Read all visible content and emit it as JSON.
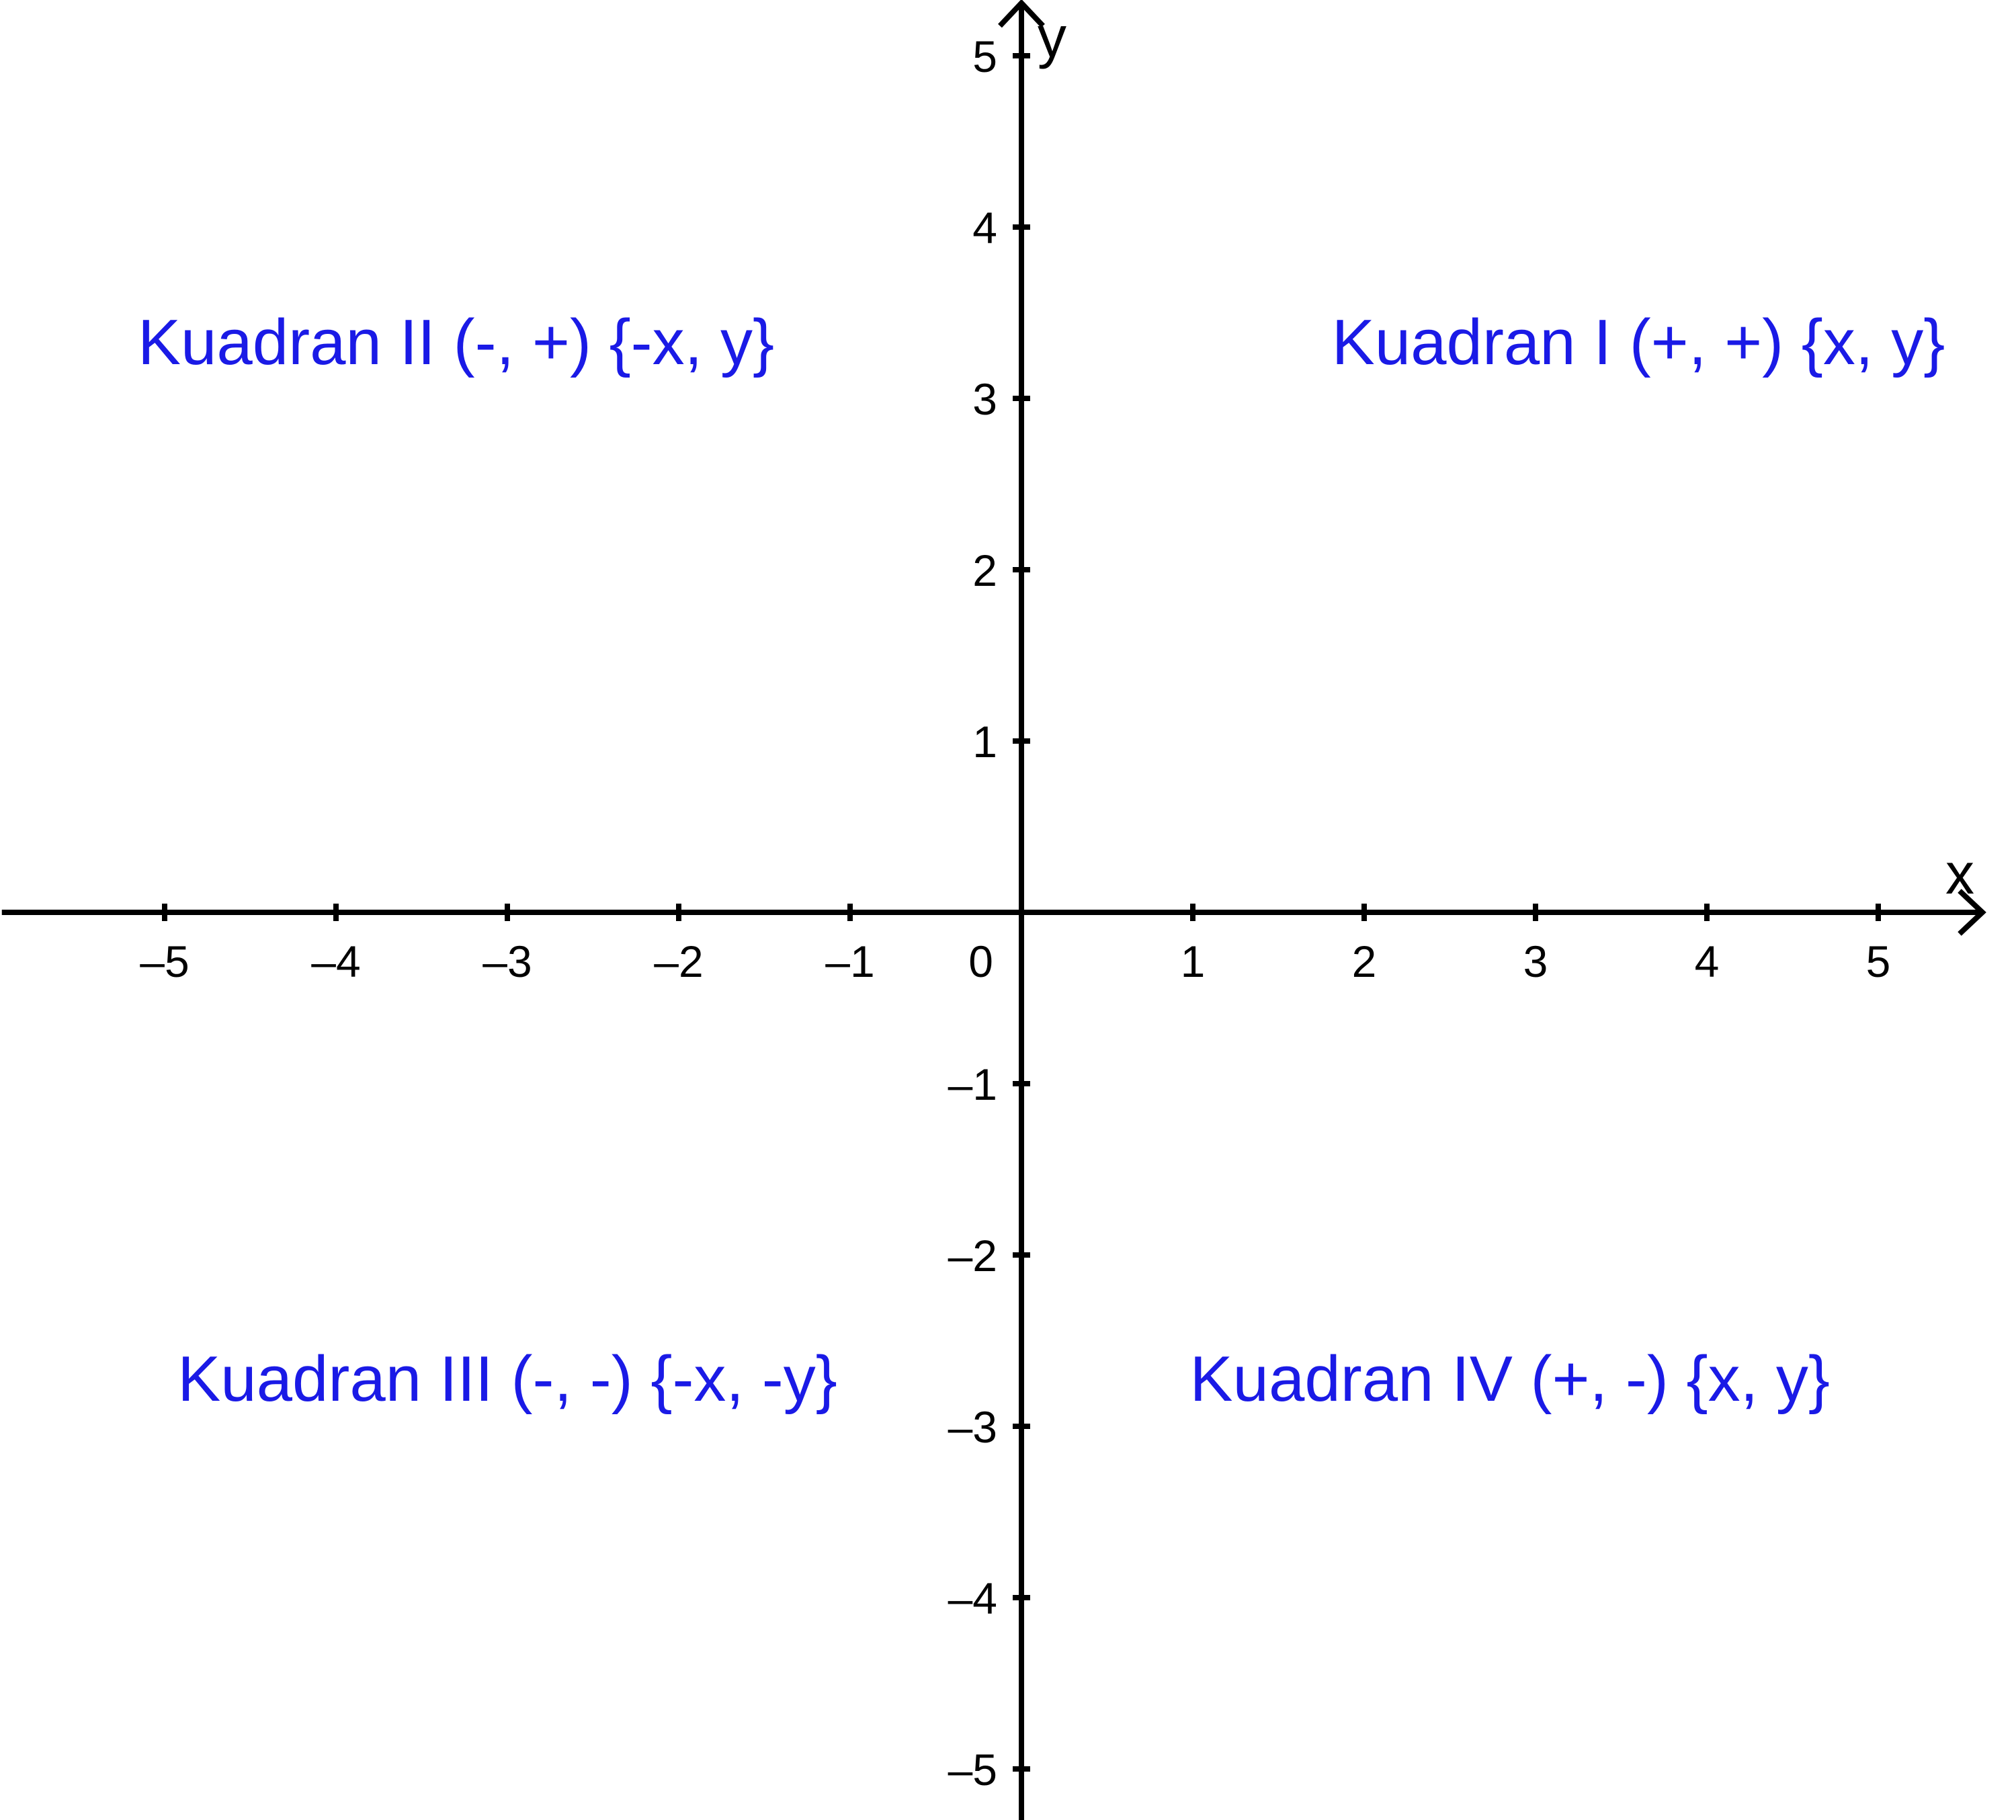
{
  "axes": {
    "x_label": "x",
    "y_label": "y",
    "origin_label": "0",
    "x_range": [
      -5.95,
      5.6
    ],
    "y_range": [
      -5.3,
      5.3
    ],
    "x_ticks": [
      -5,
      -4,
      -3,
      -2,
      -1,
      1,
      2,
      3,
      4,
      5
    ],
    "y_ticks": [
      -5,
      -4,
      -3,
      -2,
      -1,
      1,
      2,
      3,
      4,
      5
    ],
    "x_tick_labels": [
      "–5",
      "–4",
      "–3",
      "–2",
      "–1",
      "1",
      "2",
      "3",
      "4",
      "5"
    ],
    "y_tick_labels": [
      "–5",
      "–4",
      "–3",
      "–2",
      "–1",
      "1",
      "2",
      "3",
      "4",
      "5"
    ],
    "axis_color": "#000000",
    "grid": false
  },
  "quadrants": [
    {
      "label": "Kuadran I (+, +) {x, y}",
      "x": 3.6,
      "y": 3.2
    },
    {
      "label": "Kuadran II (-, +) {-x, y}",
      "x": -3.3,
      "y": 3.2
    },
    {
      "label": "Kuadran III (-, -) {-x, -y}",
      "x": -3.0,
      "y": -2.85
    },
    {
      "label": "Kuadran IV (+, -) {x, y}",
      "x": 2.85,
      "y": -2.85
    }
  ],
  "label_color": "#1a1ae6"
}
